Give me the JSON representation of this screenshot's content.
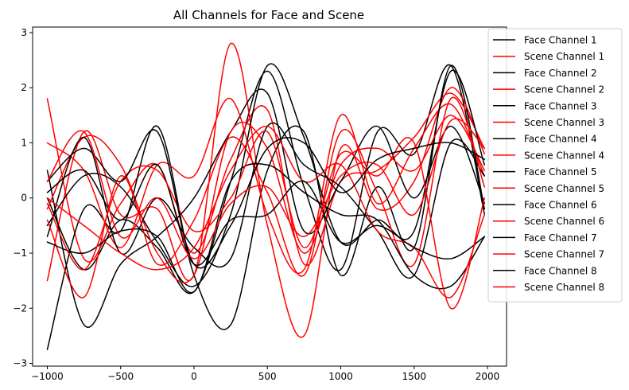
{
  "chart_data": {
    "type": "line",
    "title": "All Channels for Face and Scene",
    "xlabel": "",
    "ylabel": "",
    "xlim": [
      -1100,
      2130
    ],
    "ylim": [
      -3.05,
      3.1
    ],
    "xticks": [
      -1000,
      -500,
      0,
      500,
      1000,
      1500,
      2000
    ],
    "xtick_labels": [
      "−1000",
      "−500",
      "0",
      "500",
      "1000",
      "1500",
      "2000"
    ],
    "yticks": [
      -3,
      -2,
      -1,
      0,
      1,
      2,
      3
    ],
    "ytick_labels": [
      "−3",
      "−2",
      "−1",
      "0",
      "1",
      "2",
      "3"
    ],
    "grid": false,
    "legend_position": "right",
    "colors": {
      "face": "#000000",
      "scene": "#ff0000"
    },
    "series": [
      {
        "name": "Face Channel 1",
        "color": "#000000",
        "x": [
          -1000,
          -750,
          -500,
          -250,
          0,
          250,
          500,
          750,
          1000,
          1250,
          1500,
          1750,
          1980
        ],
        "values": [
          0.0,
          -1.3,
          -0.4,
          -0.9,
          -1.7,
          0.3,
          2.3,
          0.2,
          -1.3,
          1.2,
          0.8,
          2.4,
          -0.3
        ]
      },
      {
        "name": "Scene Channel 1",
        "color": "#ff0000",
        "x": [
          -1000,
          -750,
          -500,
          -250,
          0,
          250,
          500,
          750,
          1000,
          1250,
          1500,
          1750,
          1980
        ],
        "values": [
          1.8,
          -1.1,
          -0.1,
          0.6,
          -1.0,
          0.7,
          1.6,
          -1.2,
          0.3,
          0.5,
          1.1,
          1.9,
          0.9
        ]
      },
      {
        "name": "Face Channel 2",
        "color": "#000000",
        "x": [
          -1000,
          -750,
          -500,
          -250,
          0,
          250,
          500,
          750,
          1000,
          1250,
          1500,
          1750,
          1980
        ],
        "values": [
          -2.75,
          -0.2,
          -0.6,
          1.3,
          -1.4,
          -2.3,
          0.5,
          1.2,
          -1.4,
          0.2,
          -0.9,
          2.4,
          -0.2
        ]
      },
      {
        "name": "Scene Channel 2",
        "color": "#ff0000",
        "x": [
          -1000,
          -750,
          -500,
          -250,
          0,
          250,
          500,
          750,
          1000,
          1250,
          1500,
          1750,
          1980
        ],
        "values": [
          -1.5,
          1.2,
          -0.3,
          -0.2,
          -1.4,
          2.8,
          -0.5,
          -2.5,
          0.9,
          -0.2,
          0.3,
          2.0,
          0.8
        ]
      },
      {
        "name": "Face Channel 3",
        "color": "#000000",
        "x": [
          -1000,
          -750,
          -500,
          -250,
          0,
          250,
          500,
          750,
          1000,
          1250,
          1500,
          1750,
          1980
        ],
        "values": [
          0.5,
          -2.3,
          -1.2,
          -0.7,
          0.0,
          1.2,
          1.9,
          -0.6,
          0.3,
          1.3,
          0.0,
          1.3,
          -0.1
        ]
      },
      {
        "name": "Scene Channel 3",
        "color": "#ff0000",
        "x": [
          -1000,
          -750,
          -500,
          -250,
          0,
          250,
          500,
          750,
          1000,
          1250,
          1500,
          1750,
          1980
        ],
        "values": [
          1.0,
          0.5,
          -0.9,
          0.6,
          0.4,
          1.8,
          -0.3,
          -1.3,
          1.5,
          -0.1,
          0.9,
          1.7,
          0.4
        ]
      },
      {
        "name": "Face Channel 4",
        "color": "#000000",
        "x": [
          -1000,
          -750,
          -500,
          -250,
          0,
          250,
          500,
          750,
          1000,
          1250,
          1500,
          1750,
          1980
        ],
        "values": [
          -0.5,
          0.4,
          0.2,
          -0.8,
          -1.6,
          -0.3,
          2.4,
          1.1,
          -0.8,
          -0.4,
          -0.6,
          2.3,
          0.6
        ]
      },
      {
        "name": "Scene Channel 4",
        "color": "#ff0000",
        "x": [
          -1000,
          -750,
          -500,
          -250,
          0,
          250,
          500,
          750,
          1000,
          1250,
          1500,
          1750,
          1980
        ],
        "values": [
          -0.2,
          1.1,
          0.6,
          -1.0,
          -1.4,
          1.2,
          0.9,
          -1.0,
          0.6,
          0.9,
          0.5,
          1.5,
          0.5
        ]
      },
      {
        "name": "Face Channel 5",
        "color": "#000000",
        "x": [
          -1000,
          -750,
          -500,
          -250,
          0,
          250,
          500,
          750,
          1000,
          1250,
          1500,
          1750,
          1980
        ],
        "values": [
          -0.7,
          1.1,
          -1.0,
          0.0,
          -0.9,
          -1.1,
          1.3,
          0.6,
          0.2,
          -0.6,
          -1.4,
          1.0,
          0.4
        ]
      },
      {
        "name": "Scene Channel 5",
        "color": "#ff0000",
        "x": [
          -1000,
          -750,
          -500,
          -250,
          0,
          250,
          500,
          750,
          1000,
          1250,
          1500,
          1750,
          1980
        ],
        "values": [
          -0.4,
          -1.8,
          0.4,
          -1.2,
          -0.4,
          1.1,
          0.1,
          -1.4,
          1.2,
          0.1,
          -1.2,
          1.8,
          0.2
        ]
      },
      {
        "name": "Face Channel 6",
        "color": "#000000",
        "x": [
          -1000,
          -750,
          -500,
          -250,
          0,
          250,
          500,
          750,
          1000,
          1250,
          1500,
          1750,
          1980
        ],
        "values": [
          -0.8,
          -1.0,
          -0.6,
          -0.7,
          -1.7,
          0.3,
          0.6,
          0.1,
          -0.3,
          -0.4,
          -1.4,
          -1.6,
          -0.7
        ]
      },
      {
        "name": "Scene Channel 6",
        "color": "#ff0000",
        "x": [
          -1000,
          -750,
          -500,
          -250,
          0,
          250,
          500,
          750,
          1000,
          1250,
          1500,
          1750,
          1980
        ],
        "values": [
          0.0,
          -0.5,
          -1.0,
          -1.3,
          -0.9,
          0.5,
          1.3,
          0.3,
          0.6,
          -0.6,
          -0.9,
          -1.8,
          -0.3
        ]
      },
      {
        "name": "Face Channel 7",
        "color": "#000000",
        "x": [
          -1000,
          -750,
          -500,
          -250,
          0,
          250,
          500,
          750,
          1000,
          1250,
          1500,
          1750,
          1980
        ],
        "values": [
          0.1,
          0.5,
          -0.4,
          0.6,
          -1.2,
          -0.4,
          -0.3,
          0.3,
          -0.8,
          -0.5,
          -0.9,
          -1.1,
          -0.7
        ]
      },
      {
        "name": "Scene Channel 7",
        "color": "#ff0000",
        "x": [
          -1000,
          -750,
          -500,
          -250,
          0,
          250,
          500,
          750,
          1000,
          1250,
          1500,
          1750,
          1980
        ],
        "values": [
          -0.1,
          -1.3,
          0.3,
          0.5,
          -0.6,
          0.0,
          1.2,
          -0.9,
          0.8,
          0.4,
          1.0,
          -2.0,
          0.0
        ]
      },
      {
        "name": "Face Channel 8",
        "color": "#000000",
        "x": [
          -1000,
          -750,
          -500,
          -250,
          0,
          250,
          500,
          750,
          1000,
          1250,
          1500,
          1750,
          1980
        ],
        "values": [
          0.3,
          0.9,
          0.3,
          1.2,
          -1.2,
          -0.5,
          0.9,
          1.0,
          0.1,
          0.7,
          0.9,
          1.0,
          0.7
        ]
      },
      {
        "name": "Scene Channel 8",
        "color": "#ff0000",
        "x": [
          -1000,
          -750,
          -500,
          -250,
          0,
          250,
          500,
          750,
          1000,
          1250,
          1500,
          1750,
          1980
        ],
        "values": [
          0.3,
          1.2,
          -0.7,
          0.0,
          -1.1,
          -0.1,
          0.2,
          -0.7,
          0.4,
          0.6,
          -0.3,
          1.4,
          0.9
        ]
      }
    ]
  }
}
